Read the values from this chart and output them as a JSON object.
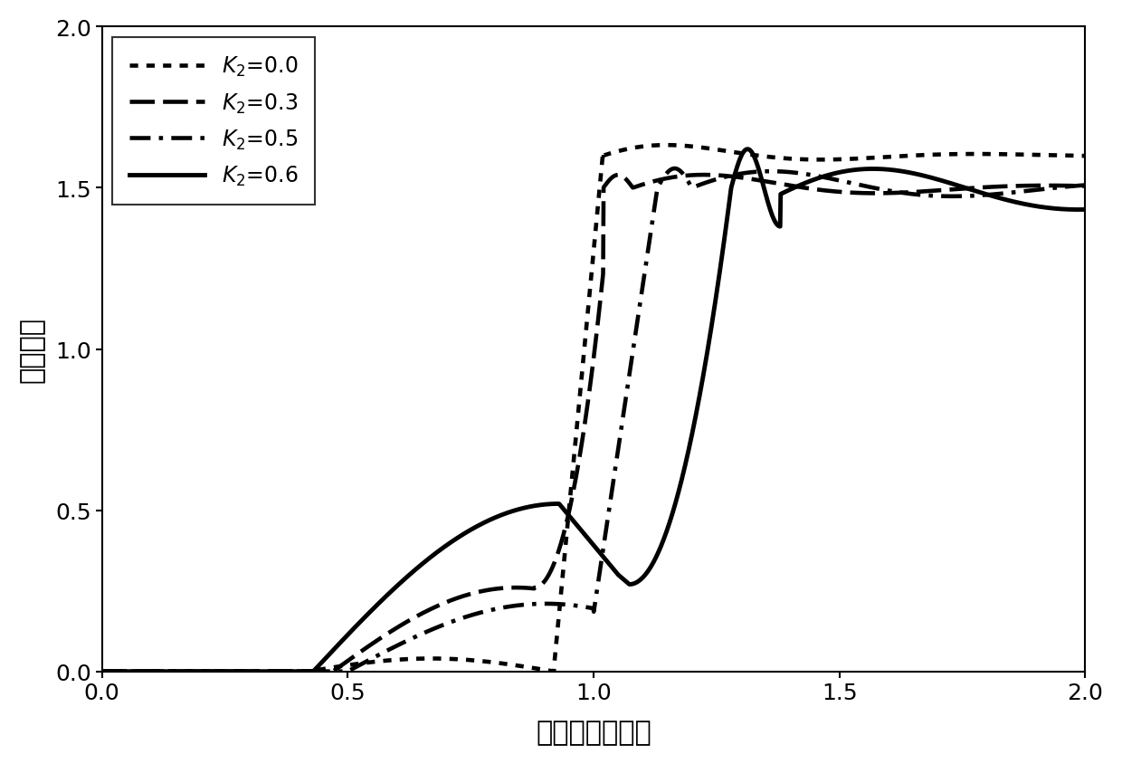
{
  "xlabel": "归一化输入功率",
  "ylabel": "透射系数",
  "xlim": [
    0,
    2
  ],
  "ylim": [
    0,
    2
  ],
  "xticks": [
    0,
    0.5,
    1.0,
    1.5,
    2.0
  ],
  "yticks": [
    0,
    0.5,
    1.0,
    1.5,
    2.0
  ],
  "line_color": "#000000",
  "background_color": "#ffffff",
  "font_size_labels": 22,
  "font_size_ticks": 18,
  "font_size_legend": 17,
  "line_width": 2.8
}
